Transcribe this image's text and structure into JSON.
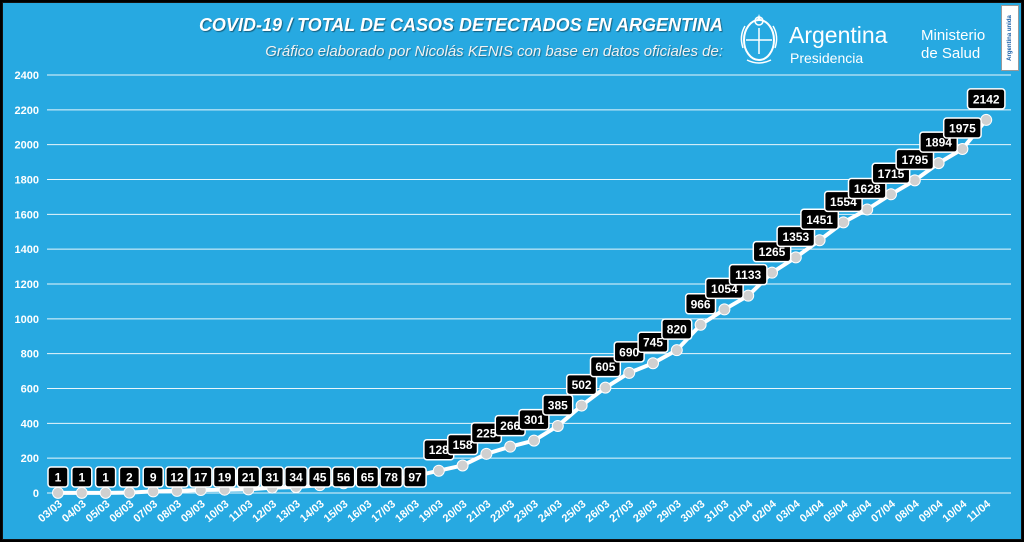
{
  "header": {
    "title": "COVID-19  /  TOTAL DE CASOS DETECTADOS EN ARGENTINA",
    "subtitle": "Gráfico elaborado por Nicolás KENIS con base en datos oficiales de:"
  },
  "logos": {
    "argentina_name": "Argentina",
    "argentina_sub": "Presidencia",
    "ministerio_line1": "Ministerio",
    "ministerio_line2": "de Salud",
    "badge_text": "Argentina unida"
  },
  "colors": {
    "background": "#27a9e1",
    "gridline": "#ffffff",
    "line": "#ffffff",
    "marker": "#d0d0d0",
    "label_box": "#000000",
    "label_text": "#ffffff"
  },
  "chart_data": {
    "type": "line",
    "title": "COVID-19  /  TOTAL DE CASOS DETECTADOS EN ARGENTINA",
    "xlabel": "",
    "ylabel": "",
    "ylim": [
      0,
      2400
    ],
    "yticks": [
      0,
      200,
      400,
      600,
      800,
      1000,
      1200,
      1400,
      1600,
      1800,
      2000,
      2200,
      2400
    ],
    "grid": true,
    "categories": [
      "03/03",
      "04/03",
      "05/03",
      "06/03",
      "07/03",
      "08/03",
      "09/03",
      "10/03",
      "11/03",
      "12/03",
      "13/03",
      "14/03",
      "15/03",
      "16/03",
      "17/03",
      "18/03",
      "19/03",
      "20/03",
      "21/03",
      "22/03",
      "23/03",
      "24/03",
      "25/03",
      "26/03",
      "27/03",
      "28/03",
      "29/03",
      "30/03",
      "31/03",
      "01/04",
      "02/04",
      "03/04",
      "04/04",
      "05/04",
      "06/04",
      "07/04",
      "08/04",
      "09/04",
      "10/04",
      "11/04"
    ],
    "series": [
      {
        "values": [
          1,
          1,
          1,
          2,
          9,
          12,
          17,
          19,
          21,
          31,
          34,
          45,
          56,
          65,
          78,
          97,
          128,
          158,
          225,
          266,
          301,
          385,
          502,
          605,
          690,
          745,
          820,
          966,
          1054,
          1133,
          1265,
          1353,
          1451,
          1554,
          1628,
          1715,
          1795,
          1894,
          1975,
          2142
        ]
      }
    ]
  }
}
